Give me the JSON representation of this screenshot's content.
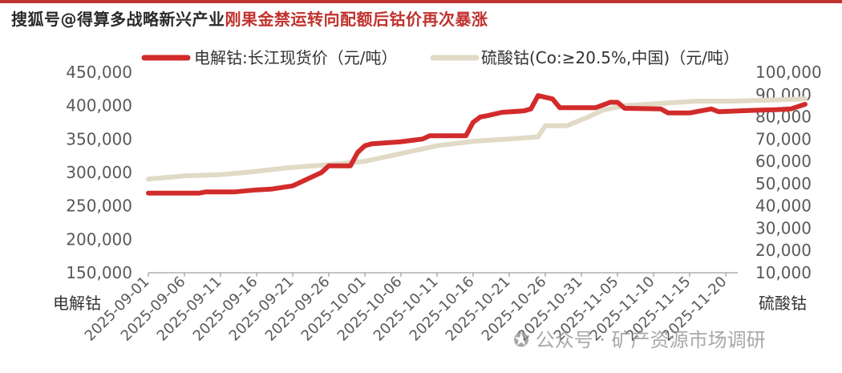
{
  "header": {
    "overlay_text": "搜狐号@得算多战略新兴产业",
    "title": "刚果金禁运转向配额后钴价再次暴涨",
    "title_accent_color": "#c0322e"
  },
  "watermark": {
    "icon": "wechat-icon",
    "text": "公众号 · 矿产资源市场调研"
  },
  "chart_data": {
    "type": "line",
    "x": [
      "2025-09-01",
      "2025-09-06",
      "2025-09-11",
      "2025-09-16",
      "2025-09-21",
      "2025-09-26",
      "2025-10-01",
      "2025-10-06",
      "2025-10-11",
      "2025-10-16",
      "2025-10-21",
      "2025-10-26",
      "2025-10-31",
      "2025-11-05",
      "2025-11-10",
      "2025-11-15",
      "2025-11-20"
    ],
    "xlabel_left": "电解钴",
    "xlabel_right": "硫酸钴",
    "grid": false,
    "legend_position": "top",
    "y_left": {
      "ticks": [
        "450,000",
        "400,000",
        "350,000",
        "300,000",
        "250,000",
        "200,000",
        "150,000"
      ],
      "ylim": [
        150000,
        450000
      ]
    },
    "y_right": {
      "ticks": [
        "100,000",
        "90,000",
        "80,000",
        "70,000",
        "60,000",
        "50,000",
        "40,000",
        "30,000",
        "20,000",
        "10,000"
      ],
      "ylim": [
        10000,
        100000
      ]
    },
    "series": [
      {
        "name": "电解钴:长江现货价（元/吨）",
        "axis": "left",
        "color": "#d22b2b",
        "points": [
          [
            "2025-09-01",
            269000
          ],
          [
            "2025-09-06",
            269000
          ],
          [
            "2025-09-08",
            269000
          ],
          [
            "2025-09-09",
            271000
          ],
          [
            "2025-09-13",
            271000
          ],
          [
            "2025-09-16",
            274000
          ],
          [
            "2025-09-18",
            275000
          ],
          [
            "2025-09-21",
            280000
          ],
          [
            "2025-09-23",
            290000
          ],
          [
            "2025-09-25",
            300000
          ],
          [
            "2025-09-26",
            310000
          ],
          [
            "2025-09-29",
            310000
          ],
          [
            "2025-09-30",
            330000
          ],
          [
            "2025-10-01",
            340000
          ],
          [
            "2025-10-02",
            343000
          ],
          [
            "2025-10-06",
            346000
          ],
          [
            "2025-10-09",
            350000
          ],
          [
            "2025-10-10",
            355000
          ],
          [
            "2025-10-15",
            355000
          ],
          [
            "2025-10-16",
            375000
          ],
          [
            "2025-10-17",
            383000
          ],
          [
            "2025-10-18",
            385000
          ],
          [
            "2025-10-20",
            390000
          ],
          [
            "2025-10-23",
            392000
          ],
          [
            "2025-10-24",
            395000
          ],
          [
            "2025-10-25",
            415000
          ],
          [
            "2025-10-27",
            410000
          ],
          [
            "2025-10-28",
            397000
          ],
          [
            "2025-11-02",
            397000
          ],
          [
            "2025-11-04",
            405000
          ],
          [
            "2025-11-05",
            405000
          ],
          [
            "2025-11-06",
            396000
          ],
          [
            "2025-11-11",
            395000
          ],
          [
            "2025-11-12",
            389000
          ],
          [
            "2025-11-15",
            389000
          ],
          [
            "2025-11-18",
            395000
          ],
          [
            "2025-11-19",
            391000
          ],
          [
            "2025-11-24",
            393000
          ],
          [
            "2025-11-27",
            394000
          ],
          [
            "2025-11-29",
            395000
          ],
          [
            "2025-12-01",
            402000
          ]
        ]
      },
      {
        "name": "硫酸钴(Co:≥20.5%,中国)（元/吨）",
        "axis": "right",
        "color": "#e0dac6",
        "points": [
          [
            "2025-09-01",
            52000
          ],
          [
            "2025-09-06",
            53500
          ],
          [
            "2025-09-11",
            54000
          ],
          [
            "2025-09-16",
            55500
          ],
          [
            "2025-09-20",
            57000
          ],
          [
            "2025-09-26",
            58500
          ],
          [
            "2025-10-01",
            60000
          ],
          [
            "2025-10-06",
            63500
          ],
          [
            "2025-10-11",
            67000
          ],
          [
            "2025-10-16",
            69000
          ],
          [
            "2025-10-21",
            70000
          ],
          [
            "2025-10-25",
            71000
          ],
          [
            "2025-10-26",
            76000
          ],
          [
            "2025-10-29",
            76000
          ],
          [
            "2025-11-01",
            80000
          ],
          [
            "2025-11-03",
            83000
          ],
          [
            "2025-11-06",
            85000
          ],
          [
            "2025-11-11",
            86000
          ],
          [
            "2025-11-16",
            87000
          ],
          [
            "2025-11-21",
            87000
          ],
          [
            "2025-11-26",
            87500
          ],
          [
            "2025-12-01",
            88000
          ]
        ]
      }
    ]
  }
}
